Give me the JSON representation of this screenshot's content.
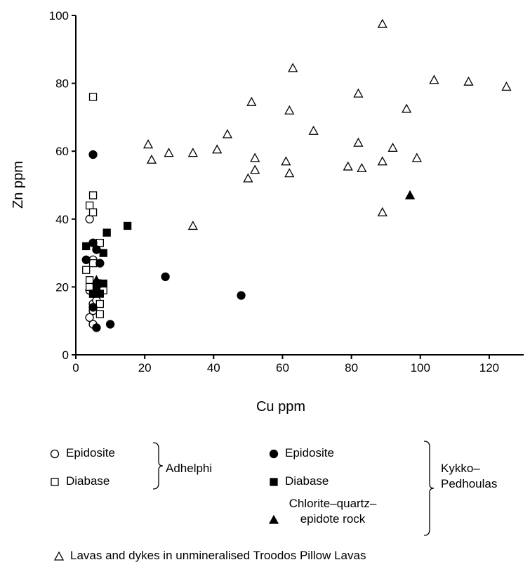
{
  "chart_data": {
    "type": "scatter",
    "x_label": "Cu ppm",
    "y_label": "Zn ppm",
    "xlim": [
      0,
      130
    ],
    "ylim": [
      0,
      100
    ],
    "xticks": [
      0,
      20,
      40,
      60,
      80,
      100,
      120
    ],
    "yticks": [
      0,
      20,
      40,
      60,
      80,
      100
    ],
    "legend_groups": [
      {
        "name": "Adhelphi",
        "series": [
          0,
          1
        ]
      },
      {
        "name": "Kykko–Pedhoulas",
        "series": [
          2,
          3,
          4
        ]
      }
    ],
    "series": [
      {
        "name": "Epidosite",
        "marker": "circle",
        "filled": false,
        "color": "#000000",
        "x": [
          4,
          5,
          5,
          4,
          5,
          6,
          5,
          4
        ],
        "values": [
          40,
          9,
          15,
          11,
          13,
          16,
          28,
          19
        ]
      },
      {
        "name": "Diabase",
        "marker": "square",
        "filled": false,
        "color": "#000000",
        "x": [
          5,
          5,
          4,
          5,
          7,
          5,
          3,
          4,
          4,
          5,
          7,
          7,
          8
        ],
        "values": [
          76,
          47,
          44,
          42,
          33,
          27,
          25,
          22,
          20,
          18,
          15,
          12,
          19
        ]
      },
      {
        "name": "Epidosite",
        "marker": "circle",
        "filled": true,
        "color": "#000000",
        "x": [
          5,
          5,
          3,
          7,
          6,
          5,
          6,
          10,
          26,
          48,
          7
        ],
        "values": [
          59,
          33,
          28,
          27,
          31,
          14,
          8,
          9,
          23,
          17.5,
          21
        ]
      },
      {
        "name": "Diabase",
        "marker": "square",
        "filled": true,
        "color": "#000000",
        "x": [
          15,
          9,
          3,
          8,
          6,
          8,
          7,
          5
        ],
        "values": [
          38,
          36,
          32,
          30,
          20,
          21,
          18,
          18
        ]
      },
      {
        "name": "Chlorite–quartz–epidote rock",
        "marker": "triangle",
        "filled": true,
        "color": "#000000",
        "x": [
          97,
          6
        ],
        "values": [
          47,
          22
        ]
      },
      {
        "name": "Lavas and dykes in unmineralised Troodos Pillow Lavas",
        "marker": "triangle",
        "filled": false,
        "color": "#000000",
        "x": [
          89,
          63,
          104,
          114,
          125,
          82,
          51,
          62,
          96,
          69,
          44,
          21,
          82,
          92,
          41,
          27,
          34,
          22,
          52,
          99,
          61,
          89,
          79,
          83,
          52,
          62,
          50,
          89,
          34
        ],
        "values": [
          97.5,
          84.5,
          81,
          80.5,
          79,
          77,
          74.5,
          72,
          72.5,
          66,
          65,
          62,
          62.5,
          61,
          60.5,
          59.5,
          59.5,
          57.5,
          58,
          58,
          57,
          57,
          55.5,
          55,
          54.5,
          53.5,
          52,
          42,
          38
        ]
      }
    ]
  }
}
